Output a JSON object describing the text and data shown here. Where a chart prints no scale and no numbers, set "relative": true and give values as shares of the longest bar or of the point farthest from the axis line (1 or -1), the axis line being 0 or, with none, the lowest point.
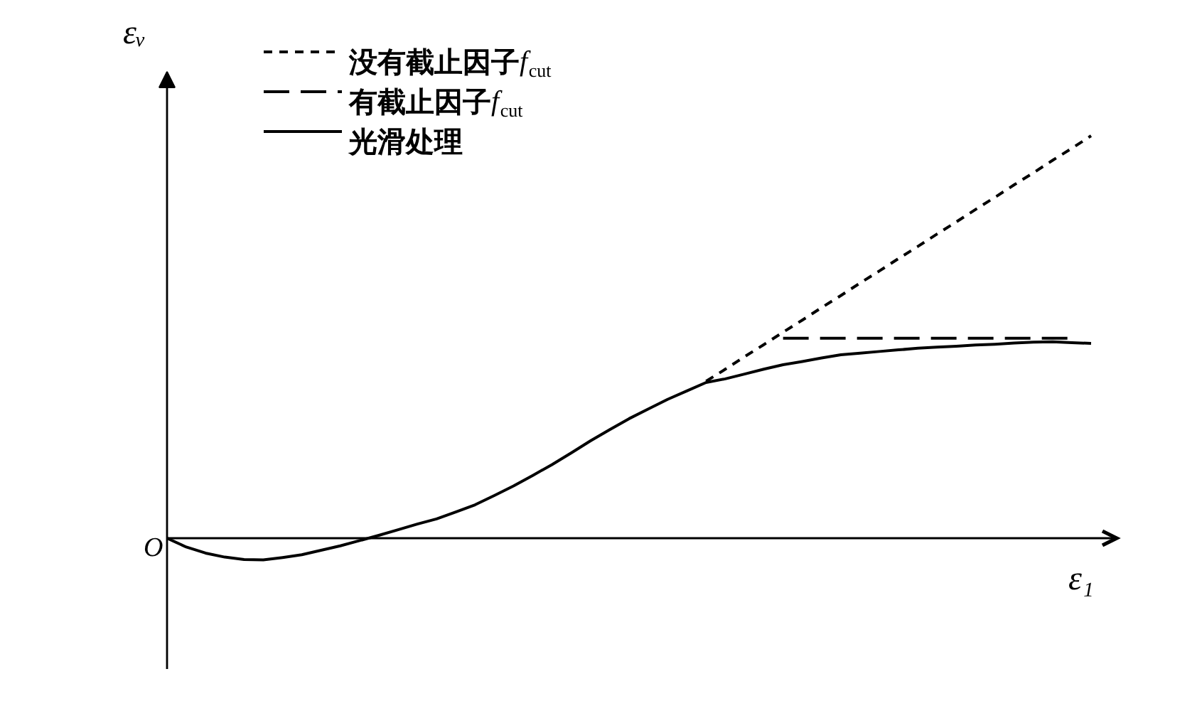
{
  "chart_data": {
    "type": "line",
    "relative": true,
    "xlabel": "ε₁",
    "ylabel": "εᵥ",
    "legend": "top left",
    "annotations": [
      "O"
    ],
    "categories": [
      null,
      null,
      null,
      null,
      null,
      null,
      null,
      null,
      null,
      null,
      null,
      null,
      null,
      null,
      null,
      null,
      null,
      null,
      null,
      null,
      null,
      null,
      null,
      null,
      null,
      null,
      null,
      null,
      null,
      null,
      null,
      null,
      null,
      null,
      null,
      null,
      null,
      null,
      null,
      null,
      null,
      null,
      null,
      null,
      null,
      null,
      null,
      null,
      null
    ],
    "series": [
      {
        "name": "没有截止因子f$_{cut}$",
        "color": "#000000",
        "line_style": "dotted",
        "values": [
          null,
          null,
          null,
          null,
          null,
          null,
          null,
          null,
          null,
          null,
          null,
          null,
          null,
          null,
          null,
          null,
          null,
          null,
          null,
          null,
          null,
          null,
          null,
          null,
          null,
          null,
          null,
          null,
          0.39,
          0.42,
          0.451,
          0.481,
          0.512,
          0.542,
          0.573,
          0.603,
          0.634,
          0.664,
          0.695,
          0.725,
          0.756,
          0.786,
          0.817,
          0.847,
          0.878,
          0.908,
          0.939,
          0.969,
          1.0
        ]
      },
      {
        "name": "有截止因子f$_{cut}$",
        "color": "#000000",
        "line_style": "dashed",
        "values": [
          null,
          null,
          null,
          null,
          null,
          null,
          null,
          null,
          null,
          null,
          null,
          null,
          null,
          null,
          null,
          null,
          null,
          null,
          null,
          null,
          null,
          null,
          null,
          null,
          null,
          null,
          null,
          null,
          null,
          null,
          null,
          null,
          0.497,
          0.497,
          0.497,
          0.497,
          0.497,
          0.497,
          0.497,
          0.497,
          0.497,
          0.497,
          0.497,
          0.497,
          0.497,
          0.497,
          0.497,
          0.497,
          null
        ]
      },
      {
        "name": "光滑处理",
        "color": "#000000",
        "line_style": "solid",
        "values": [
          0,
          -0.022,
          -0.037,
          -0.047,
          -0.053,
          -0.054,
          -0.048,
          -0.041,
          -0.03,
          -0.019,
          -0.006,
          0.007,
          0.021,
          0.035,
          0.048,
          0.065,
          0.083,
          0.106,
          0.13,
          0.156,
          0.183,
          0.212,
          0.242,
          0.27,
          0.297,
          0.321,
          0.345,
          0.366,
          0.387,
          0.396,
          0.408,
          0.42,
          0.431,
          0.439,
          0.448,
          0.456,
          0.46,
          0.464,
          0.468,
          0.472,
          0.475,
          0.477,
          0.48,
          0.482,
          0.485,
          0.487,
          0.488,
          0.486,
          0.484
        ]
      }
    ]
  }
}
